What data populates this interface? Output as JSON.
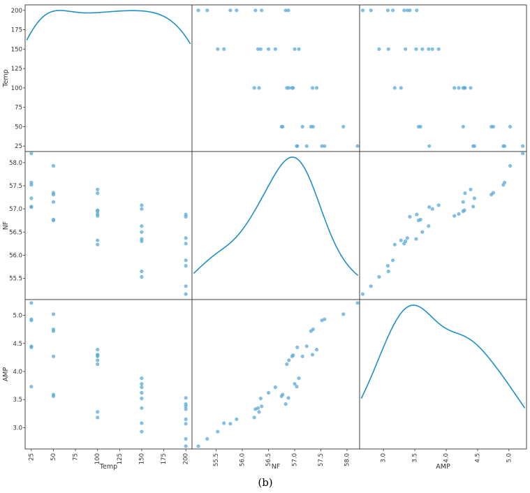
{
  "chart_data": {
    "type": "scatter",
    "variables": [
      "Temp",
      "NF",
      "AMP"
    ],
    "axis_labels": {
      "Temp": "Temp",
      "NF": "NF",
      "AMP": "AMP"
    },
    "ranges": {
      "Temp": [
        18,
        207
      ],
      "NF": [
        55.04,
        58.24
      ],
      "AMP": [
        2.62,
        5.28
      ]
    },
    "ticks": {
      "Temp": [
        25,
        50,
        75,
        100,
        125,
        150,
        175,
        200
      ],
      "NF": [
        55.5,
        56.0,
        56.5,
        57.0,
        57.5,
        58.0
      ],
      "AMP": [
        3.0,
        3.5,
        4.0,
        4.5,
        5.0
      ]
    },
    "tick_labels": {
      "Temp": [
        "25",
        "50",
        "75",
        "100",
        "125",
        "150",
        "175",
        "200"
      ],
      "NF": [
        "55.5",
        "56.0",
        "56.5",
        "57.0",
        "57.5",
        "58.0"
      ],
      "AMP": [
        "3.0",
        "3.5",
        "4.0",
        "4.5",
        "5.0"
      ]
    },
    "diagonal": "kde",
    "point_color": "#5aa9d6",
    "line_color": "#1f8fc4",
    "grid": false,
    "observations": [
      {
        "Temp": 25,
        "NF": 58.2,
        "AMP": 5.22
      },
      {
        "Temp": 25,
        "NF": 57.57,
        "AMP": 4.93
      },
      {
        "Temp": 25,
        "NF": 57.52,
        "AMP": 4.91
      },
      {
        "Temp": 25,
        "NF": 57.23,
        "AMP": 4.45
      },
      {
        "Temp": 25,
        "NF": 57.05,
        "AMP": 4.43
      },
      {
        "Temp": 25,
        "NF": 57.04,
        "AMP": 3.73
      },
      {
        "Temp": 50,
        "NF": 57.93,
        "AMP": 5.02
      },
      {
        "Temp": 50,
        "NF": 57.35,
        "AMP": 4.75
      },
      {
        "Temp": 50,
        "NF": 57.31,
        "AMP": 4.72
      },
      {
        "Temp": 50,
        "NF": 57.15,
        "AMP": 4.27
      },
      {
        "Temp": 50,
        "NF": 56.77,
        "AMP": 3.59
      },
      {
        "Temp": 50,
        "NF": 56.75,
        "AMP": 3.56
      },
      {
        "Temp": 100,
        "NF": 57.42,
        "AMP": 4.39
      },
      {
        "Temp": 100,
        "NF": 57.34,
        "AMP": 4.3
      },
      {
        "Temp": 100,
        "NF": 56.97,
        "AMP": 4.29
      },
      {
        "Temp": 100,
        "NF": 56.95,
        "AMP": 4.27
      },
      {
        "Temp": 100,
        "NF": 56.89,
        "AMP": 4.2
      },
      {
        "Temp": 100,
        "NF": 56.85,
        "AMP": 4.13
      },
      {
        "Temp": 100,
        "NF": 56.32,
        "AMP": 3.28
      },
      {
        "Temp": 100,
        "NF": 56.23,
        "AMP": 3.18
      },
      {
        "Temp": 150,
        "NF": 57.08,
        "AMP": 3.88
      },
      {
        "Temp": 150,
        "NF": 57.0,
        "AMP": 3.78
      },
      {
        "Temp": 150,
        "NF": 56.63,
        "AMP": 3.72
      },
      {
        "Temp": 150,
        "NF": 56.5,
        "AMP": 3.62
      },
      {
        "Temp": 150,
        "NF": 56.35,
        "AMP": 3.52
      },
      {
        "Temp": 150,
        "NF": 56.3,
        "AMP": 3.35
      },
      {
        "Temp": 150,
        "NF": 55.65,
        "AMP": 3.08
      },
      {
        "Temp": 150,
        "NF": 55.53,
        "AMP": 2.93
      },
      {
        "Temp": 200,
        "NF": 56.88,
        "AMP": 3.53
      },
      {
        "Temp": 200,
        "NF": 56.83,
        "AMP": 3.42
      },
      {
        "Temp": 200,
        "NF": 56.37,
        "AMP": 3.38
      },
      {
        "Temp": 200,
        "NF": 56.25,
        "AMP": 3.33
      },
      {
        "Temp": 200,
        "NF": 55.89,
        "AMP": 3.15
      },
      {
        "Temp": 200,
        "NF": 55.77,
        "AMP": 3.07
      },
      {
        "Temp": 200,
        "NF": 55.33,
        "AMP": 2.8
      },
      {
        "Temp": 200,
        "NF": 55.16,
        "AMP": 2.67
      }
    ]
  },
  "caption": "(b)"
}
